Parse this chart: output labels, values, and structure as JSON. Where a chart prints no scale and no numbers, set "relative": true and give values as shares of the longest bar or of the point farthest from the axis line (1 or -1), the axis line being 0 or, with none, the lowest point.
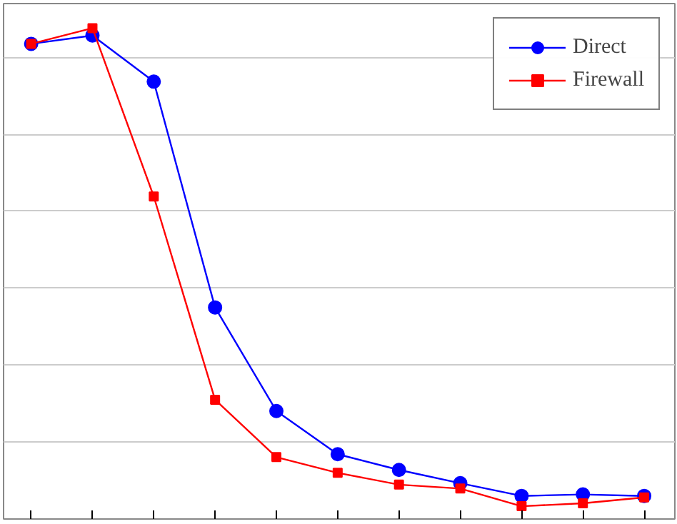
{
  "chart_data": {
    "type": "line",
    "relative": true,
    "categories": [
      null,
      null,
      null,
      null,
      null,
      null,
      null,
      null,
      null,
      null,
      null
    ],
    "series": [
      {
        "name": "Direct",
        "color": "#0000ff",
        "marker": "circle",
        "values": [
          0.968,
          0.985,
          0.891,
          0.431,
          0.22,
          0.132,
          0.1,
          0.073,
          0.047,
          0.05,
          0.047
        ]
      },
      {
        "name": "Firewall",
        "color": "#ff0000",
        "marker": "square",
        "values": [
          0.968,
          1,
          0.657,
          0.243,
          0.126,
          0.094,
          0.07,
          0.062,
          0.026,
          0.032,
          0.044
        ]
      }
    ],
    "grid": "y",
    "legend": "top right",
    "line_style": "solid"
  }
}
